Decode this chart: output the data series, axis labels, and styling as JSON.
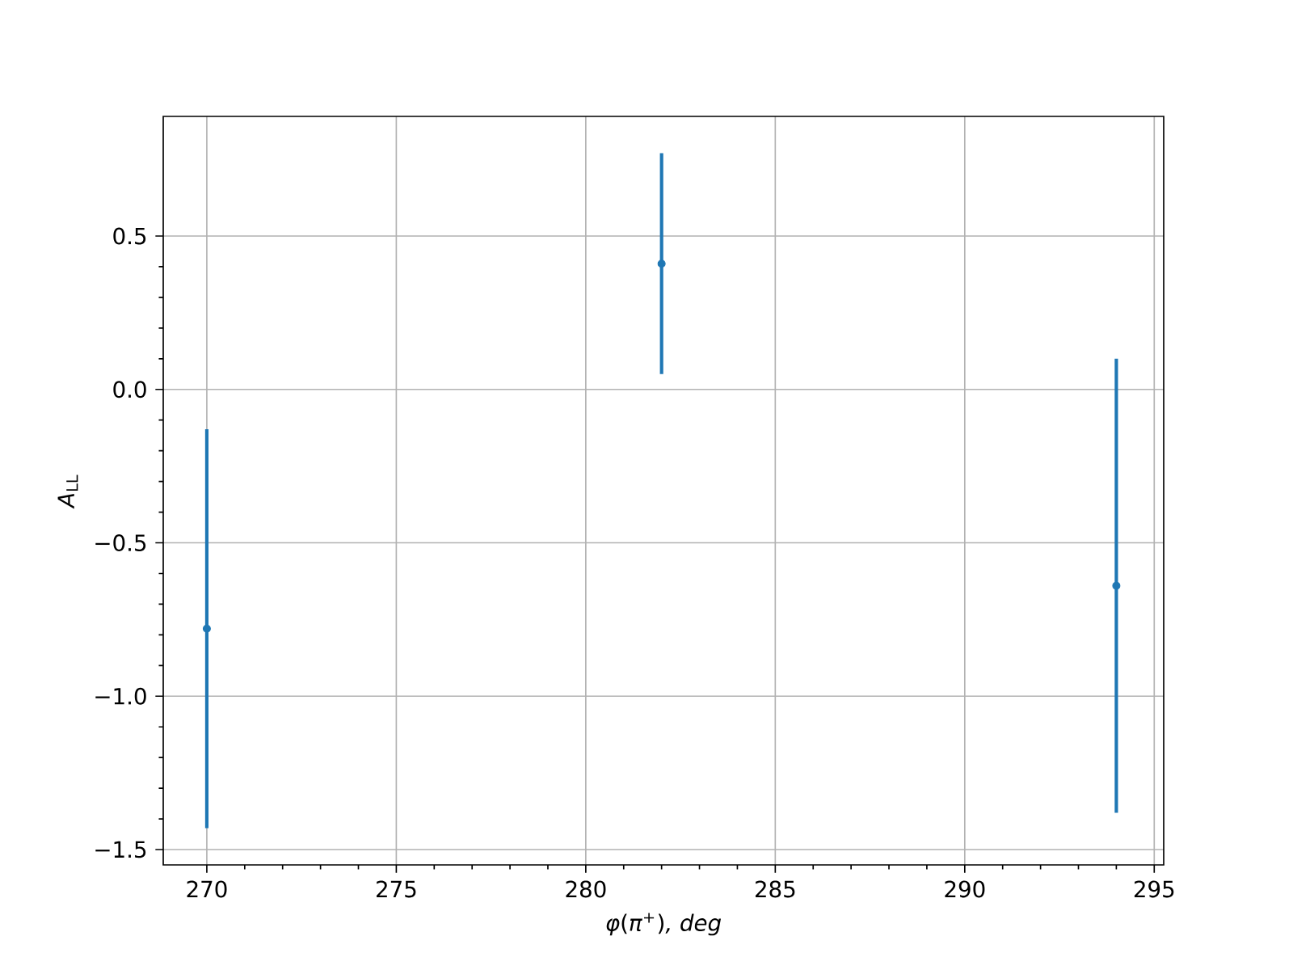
{
  "chart_data": {
    "type": "scatter",
    "xlabel": "*φ*(*π*$^{+}$)*, deg*",
    "ylabel": "*A*$_{LL}$",
    "x": [
      270,
      282,
      294
    ],
    "series": [
      {
        "color": "#1f77b4",
        "values": [
          -0.78,
          0.41,
          -0.64
        ],
        "errors": [
          0.65,
          0.36,
          0.74
        ]
      }
    ],
    "xlim": [
      268.85,
      295.25
    ],
    "ylim": [
      -1.55,
      0.89
    ],
    "xticks": [
      270,
      275,
      280,
      285,
      290,
      295
    ],
    "yticks": [
      {
        "value": -1.5,
        "label": "−1.5"
      },
      {
        "value": -1.0,
        "label": "−1.0"
      },
      {
        "value": -0.5,
        "label": "−0.5"
      },
      {
        "value": 0,
        "label": "0.0"
      },
      {
        "value": 0.5,
        "label": "0.5"
      }
    ],
    "grid": true,
    "marker": "circle"
  }
}
